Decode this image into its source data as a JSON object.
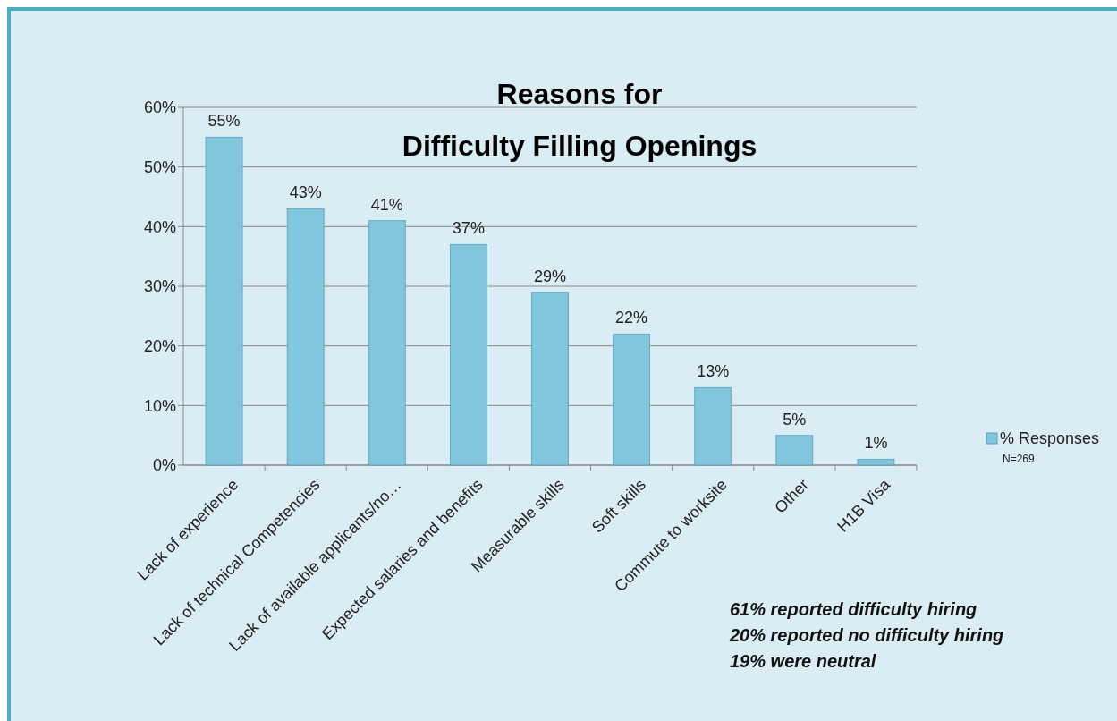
{
  "chart_data": {
    "type": "bar",
    "title": "Reasons for\nDifficulty Filling Openings",
    "categories": [
      "Lack of experience",
      "Lack of technical Competencies",
      "Lack of available applicants/no…",
      "Expected salaries and benefits",
      "Measurable skills",
      "Soft skills",
      "Commute to worksite",
      "Other",
      "H1B Visa"
    ],
    "series": [
      {
        "name": "% Responses",
        "color": "#7fc6de",
        "values": [
          55,
          43,
          41,
          37,
          29,
          22,
          13,
          5,
          1
        ],
        "value_labels": [
          "55%",
          "43%",
          "41%",
          "37%",
          "29%",
          "22%",
          "13%",
          "5%",
          "1%"
        ]
      }
    ],
    "ylim": [
      0,
      60
    ],
    "yticks": [
      {
        "value": 0,
        "label": "0%"
      },
      {
        "value": 10,
        "label": "10%"
      },
      {
        "value": 20,
        "label": "20%"
      },
      {
        "value": 30,
        "label": "30%"
      },
      {
        "value": 40,
        "label": "40%"
      },
      {
        "value": 50,
        "label": "50%"
      },
      {
        "value": 60,
        "label": "60%"
      }
    ],
    "grid": "y",
    "legend": "right",
    "annotations": [
      "N=269",
      "61% reported difficulty hiring",
      "20% reported no difficulty hiring",
      "19% were neutral"
    ]
  }
}
